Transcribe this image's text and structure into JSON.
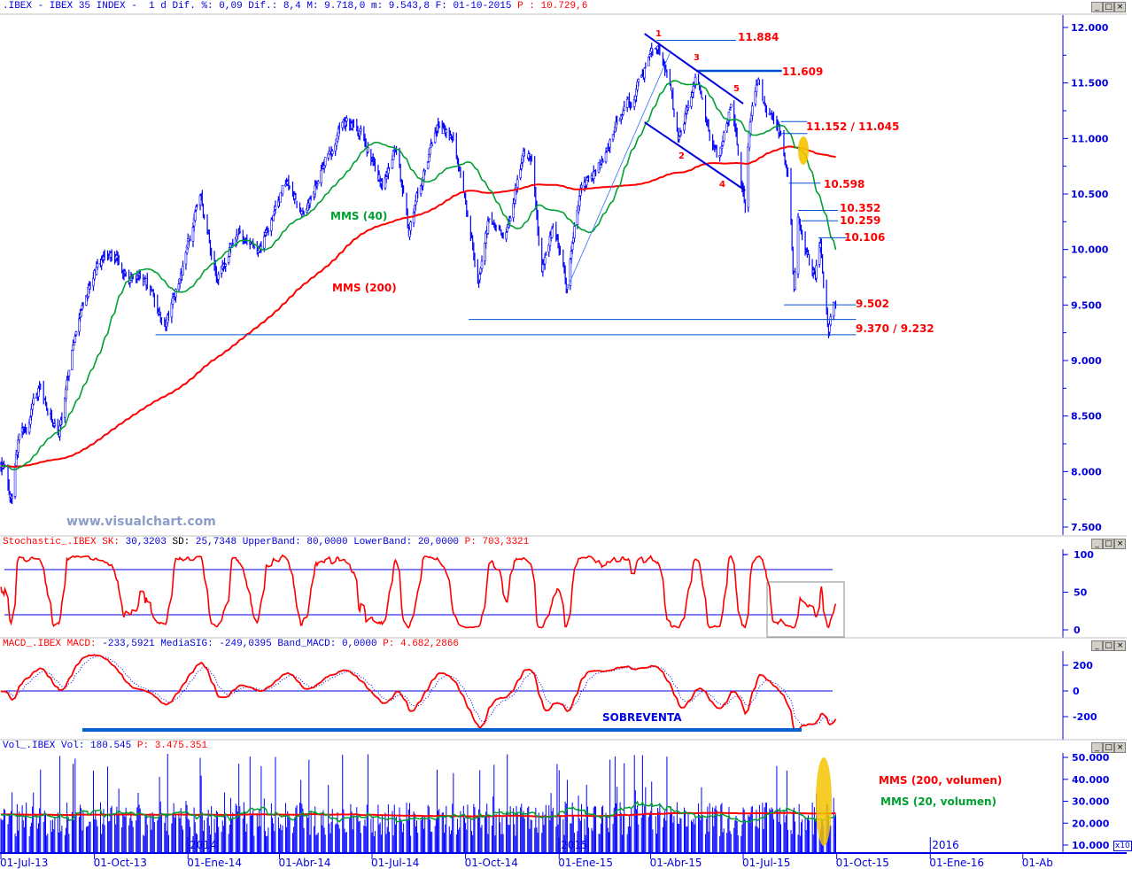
{
  "header": {
    "symbol": ".IBEX - IBEX 35 INDEX -",
    "period": "1 d",
    "dif_pct_label": "Dif. %:",
    "dif_pct": "0,09",
    "dif_label": "Dif.:",
    "dif": "8,4",
    "max_label": "M:",
    "max": "9.718,0",
    "min_label": "m:",
    "min": "9.543,8",
    "date_label": "F:",
    "date": "01-10-2015",
    "p_label": "P :",
    "p": "10.729,6"
  },
  "stochastic": {
    "name": "Stochastic_.IBEX",
    "sk_label": "SK:",
    "sk": "30,3203",
    "sd_label": "SD:",
    "sd": "25,7348",
    "upper_label": "UpperBand:",
    "upper": "80,0000",
    "lower_label": "LowerBand:",
    "lower": "20,0000",
    "p_label": "P:",
    "p": "703,3321"
  },
  "macd": {
    "name": "MACD_.IBEX",
    "macd_label": "MACD:",
    "macd": "-233,5921",
    "sig_label": "MediaSIG:",
    "sig": "-249,0395",
    "band_label": "Band_MACD:",
    "band": "0,0000",
    "p_label": "P:",
    "p": "4.682,2866",
    "note": "SOBREVENTA"
  },
  "volume": {
    "name": "Vol_.IBEX",
    "vol_label": "Vol:",
    "vol": "180.545",
    "p_label": "P:",
    "p": "3.475.351",
    "mms200_label": "MMS (200, volumen)",
    "mms20_label": "MMS (20, volumen)",
    "multiplier": "x10"
  },
  "watermark": "www.visualchart.com",
  "window_buttons": {
    "minimize": "_",
    "maximize": "□",
    "close": "×"
  },
  "colors": {
    "price": "#0000ff",
    "mms40": "#00a030",
    "mms200": "#ff0000",
    "levels": "#0050d0",
    "labels": "#ff0000",
    "highlight": "#f5c400"
  },
  "chart_data": {
    "type": "line",
    "title": ".IBEX - IBEX 35 INDEX - 1 d",
    "start": "2013-07-01",
    "end": "2015-09-30",
    "price_keypoints": [
      [
        "2013-07-05",
        8020
      ],
      [
        "2013-07-11",
        7740
      ],
      [
        "2013-07-18",
        8260
      ],
      [
        "2013-08-09",
        8740
      ],
      [
        "2013-08-27",
        8340
      ],
      [
        "2013-09-13",
        9215
      ],
      [
        "2013-09-30",
        9775
      ],
      [
        "2013-10-18",
        10010
      ],
      [
        "2013-11-04",
        9770
      ],
      [
        "2013-11-22",
        9690
      ],
      [
        "2013-12-09",
        9295
      ],
      [
        "2013-12-22",
        9690
      ],
      [
        "2014-01-13",
        10450
      ],
      [
        "2014-01-30",
        9770
      ],
      [
        "2014-02-17",
        10170
      ],
      [
        "2014-03-11",
        9930
      ],
      [
        "2014-04-06",
        10650
      ],
      [
        "2014-04-27",
        10330
      ],
      [
        "2014-05-19",
        10890
      ],
      [
        "2014-06-06",
        11170
      ],
      [
        "2014-06-23",
        11010
      ],
      [
        "2014-07-11",
        10580
      ],
      [
        "2014-07-24",
        10970
      ],
      [
        "2014-08-06",
        10180
      ],
      [
        "2014-08-19",
        10660
      ],
      [
        "2014-09-05",
        11140
      ],
      [
        "2014-09-18",
        10980
      ],
      [
        "2014-10-01",
        10420
      ],
      [
        "2014-10-14",
        9700
      ],
      [
        "2014-10-23",
        10250
      ],
      [
        "2014-11-09",
        10170
      ],
      [
        "2014-11-27",
        10870
      ],
      [
        "2014-12-06",
        10900
      ],
      [
        "2014-12-14",
        9790
      ],
      [
        "2014-12-27",
        10260
      ],
      [
        "2015-01-09",
        9690
      ],
      [
        "2015-01-22",
        10570
      ],
      [
        "2015-02-13",
        10810
      ],
      [
        "2015-03-03",
        11210
      ],
      [
        "2015-03-16",
        11370
      ],
      [
        "2015-03-24",
        11610
      ],
      [
        "2015-04-08",
        11850
      ],
      [
        "2015-04-20",
        11450
      ],
      [
        "2015-04-28",
        10980
      ],
      [
        "2015-05-16",
        11570
      ],
      [
        "2015-05-29",
        11040
      ],
      [
        "2015-06-07",
        10800
      ],
      [
        "2015-06-20",
        11360
      ],
      [
        "2015-06-28",
        10640
      ],
      [
        "2015-07-03",
        10370
      ],
      [
        "2015-07-07",
        11080
      ],
      [
        "2015-07-16",
        11570
      ],
      [
        "2015-07-24",
        11210
      ],
      [
        "2015-08-07",
        11050
      ],
      [
        "2015-08-15",
        10570
      ],
      [
        "2015-08-20",
        9610
      ],
      [
        "2015-08-24",
        10250
      ],
      [
        "2015-09-02",
        9930
      ],
      [
        "2015-09-10",
        9770
      ],
      [
        "2015-09-15",
        10050
      ],
      [
        "2015-09-23",
        9290
      ],
      [
        "2015-09-28",
        9500
      ]
    ],
    "series": [
      {
        "name": "MMS (40)",
        "period": 40,
        "color": "#00a030"
      },
      {
        "name": "MMS (200)",
        "period": 200,
        "color": "#ff0000"
      }
    ],
    "ylim": [
      7500,
      12000
    ],
    "price_ticks": [
      {
        "v": 12000,
        "label": "12.000"
      },
      {
        "v": 11500,
        "label": "11.500"
      },
      {
        "v": 11000,
        "label": "11.000"
      },
      {
        "v": 10500,
        "label": "10.500"
      },
      {
        "v": 10000,
        "label": "10.000"
      },
      {
        "v": 9500,
        "label": "9.500"
      },
      {
        "v": 9000,
        "label": "9.000"
      },
      {
        "v": 8500,
        "label": "8.500"
      },
      {
        "v": 8000,
        "label": "8.000"
      },
      {
        "v": 7500,
        "label": "7.500"
      }
    ],
    "levels": [
      {
        "value": 11884,
        "from": "2015-04-07",
        "to": "2015-06-24",
        "label": "11.884"
      },
      {
        "value": 11609,
        "from": "2015-05-16",
        "to": "2015-08-08",
        "label": "11.609",
        "thick": true
      },
      {
        "value": 11152,
        "from": "2015-08-07",
        "to": "2015-09-02",
        "label": "11.152 / 11.045"
      },
      {
        "value": 11045,
        "from": "2015-08-07",
        "to": "2015-09-02"
      },
      {
        "value": 10598,
        "from": "2015-08-15",
        "to": "2015-09-15",
        "label": "10.598"
      },
      {
        "value": 10352,
        "from": "2015-08-24",
        "to": "2015-10-02",
        "label": "10.352"
      },
      {
        "value": 10259,
        "from": "2015-08-27",
        "to": "2015-10-02",
        "label": "10.259"
      },
      {
        "value": 10106,
        "from": "2015-09-13",
        "to": "2015-10-11",
        "label": "10.106"
      },
      {
        "value": 9502,
        "from": "2015-08-10",
        "to": "2015-10-20",
        "label": "9.502"
      },
      {
        "value": 9370,
        "from": "2014-10-04",
        "to": "2015-10-20",
        "label": "9.370 / 9.232"
      },
      {
        "value": 9232,
        "from": "2013-11-30",
        "to": "2015-10-20"
      }
    ],
    "trendlines": [
      {
        "name": "channel-upper",
        "from": [
          "2015-03-26",
          11944
        ],
        "to": [
          "2015-07-01",
          11314
        ]
      },
      {
        "name": "channel-lower",
        "from": [
          "2015-03-26",
          11146
        ],
        "to": [
          "2015-07-03",
          10532
        ]
      },
      {
        "name": "support-line",
        "from": [
          "2015-01-09",
          9654
        ],
        "to": [
          "2015-04-21",
          11792
        ],
        "thin": true
      }
    ],
    "wave_points": [
      "1",
      "2",
      "3",
      "4",
      "5"
    ],
    "annotations": {
      "mms40": "MMS (40)",
      "mms200": "MMS (200)"
    },
    "stochastic_bands": [
      80,
      20
    ],
    "stoch_ticks": [
      {
        "v": 100,
        "label": "100"
      },
      {
        "v": 50,
        "label": "50"
      },
      {
        "v": 0,
        "label": "0"
      }
    ],
    "macd_ticks": [
      {
        "v": 200,
        "label": "200"
      },
      {
        "v": 0,
        "label": "0"
      },
      {
        "v": -200,
        "label": "-200"
      }
    ],
    "volume_ticks": [
      {
        "v": 50000,
        "label": "50.000"
      },
      {
        "v": 40000,
        "label": "40.000"
      },
      {
        "v": 30000,
        "label": "30.000"
      },
      {
        "v": 20000,
        "label": "20.000"
      },
      {
        "v": 10000,
        "label": "10.000"
      }
    ],
    "date_ticks": [
      {
        "d": "2013-07-01",
        "label": "01-Jul-13"
      },
      {
        "d": "2013-10-01",
        "label": "01-Oct-13"
      },
      {
        "d": "2014-01-01",
        "label": "01-Ene-14"
      },
      {
        "d": "2014-04-01",
        "label": "01-Abr-14"
      },
      {
        "d": "2014-07-01",
        "label": "01-Jul-14"
      },
      {
        "d": "2014-10-01",
        "label": "01-Oct-14"
      },
      {
        "d": "2015-01-01",
        "label": "01-Ene-15"
      },
      {
        "d": "2015-04-01",
        "label": "01-Abr-15"
      },
      {
        "d": "2015-07-01",
        "label": "01-Jul-15"
      },
      {
        "d": "2015-10-01",
        "label": "01-Oct-15"
      },
      {
        "d": "2016-01-01",
        "label": "01-Ene-16"
      },
      {
        "d": "2016-04-01",
        "label": "01-Ab"
      }
    ],
    "year_marks": [
      {
        "d": "2014-01-01",
        "label": "2014"
      },
      {
        "d": "2015-01-01",
        "label": "2015"
      },
      {
        "d": "2016-01-01",
        "label": "2016"
      }
    ]
  }
}
